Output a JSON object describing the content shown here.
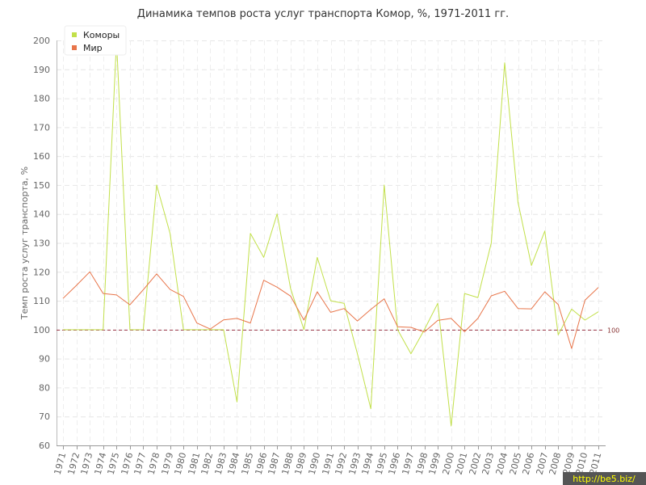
{
  "chart_data": {
    "type": "line",
    "title": "Динамика темпов роста услуг транспорта Комор, %, 1971-2011 гг.",
    "ylabel": "Темп роста услуг транспорта, %",
    "xlabel": "",
    "ylim": [
      60,
      200
    ],
    "yticks": [
      60,
      70,
      80,
      90,
      100,
      110,
      120,
      130,
      140,
      150,
      160,
      170,
      180,
      190,
      200
    ],
    "categories": [
      "1971",
      "1972",
      "1973",
      "1974",
      "1975",
      "1976",
      "1977",
      "1978",
      "1979",
      "1980",
      "1981",
      "1982",
      "1983",
      "1984",
      "1985",
      "1986",
      "1987",
      "1988",
      "1989",
      "1990",
      "1991",
      "1992",
      "1993",
      "1994",
      "1995",
      "1996",
      "1997",
      "1998",
      "1999",
      "2000",
      "2001",
      "2002",
      "2003",
      "2004",
      "2005",
      "2006",
      "2007",
      "2008",
      "2009",
      "2010",
      "2011"
    ],
    "series": [
      {
        "name": "Коморы",
        "color": "#c2e04a",
        "values": [
          100,
          100,
          100,
          100,
          200,
          100,
          100,
          150,
          133.3,
          100,
          100,
          100,
          100,
          75,
          133.3,
          125,
          140,
          114.3,
          100,
          125,
          110,
          109.1,
          91.7,
          72.7,
          150,
          100,
          91.7,
          100,
          109.1,
          66.7,
          112.5,
          111.1,
          130,
          192.3,
          144,
          122.2,
          134.1,
          98.2,
          107.1,
          103.3,
          106.2
        ]
      },
      {
        "name": "Мир",
        "color": "#e8754a",
        "values": [
          110.8,
          115.3,
          120,
          112.5,
          112,
          108.6,
          113.8,
          119.3,
          113.9,
          111.5,
          102.3,
          100.2,
          103.4,
          103.9,
          102.3,
          117.1,
          114.7,
          111.6,
          103.3,
          113.1,
          106,
          107.3,
          103,
          107,
          110.7,
          101,
          100.8,
          99.2,
          103.2,
          103.9,
          99.3,
          103.9,
          111.7,
          113.3,
          107.3,
          107.2,
          113.1,
          108.7,
          93.5,
          110.2,
          114.6
        ]
      }
    ],
    "reference_line": {
      "value": 100,
      "label": "100",
      "color": "#993344"
    },
    "grid": true,
    "legend_position": "top-left"
  },
  "watermark": "http://be5.biz/"
}
